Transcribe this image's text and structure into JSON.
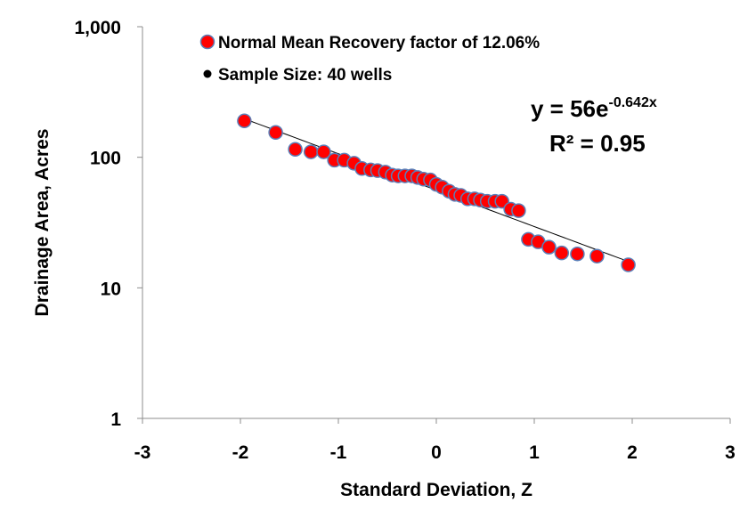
{
  "chart_data": {
    "type": "scatter",
    "xlabel": "Standard Deviation, Z",
    "ylabel": "Drainage  Area, Acres",
    "xlim": [
      -3,
      3
    ],
    "ylim": [
      1,
      1000
    ],
    "y_scale": "log",
    "grid": false,
    "x_ticks": [
      "-3",
      "-2",
      "-1",
      "0",
      "1",
      "2",
      "3"
    ],
    "y_ticks": [
      "1",
      "10",
      "100",
      "1,000"
    ],
    "legend_position": "top-left",
    "legend": [
      "Normal Mean Recovery factor of  12.06%",
      "Sample Size: 40 wells"
    ],
    "series": [
      {
        "name": "Normal Mean Recovery factor of  12.06%",
        "color": "#ff0000",
        "edge_color": "#5b7fb8",
        "points": [
          [
            -1.96,
            190
          ],
          [
            -1.64,
            155
          ],
          [
            -1.44,
            115
          ],
          [
            -1.28,
            110
          ],
          [
            -1.15,
            110
          ],
          [
            -1.04,
            95
          ],
          [
            -0.94,
            95
          ],
          [
            -0.84,
            90
          ],
          [
            -0.76,
            82
          ],
          [
            -0.67,
            80
          ],
          [
            -0.6,
            79
          ],
          [
            -0.52,
            77
          ],
          [
            -0.45,
            73
          ],
          [
            -0.39,
            72
          ],
          [
            -0.32,
            72
          ],
          [
            -0.25,
            72
          ],
          [
            -0.19,
            70
          ],
          [
            -0.13,
            68
          ],
          [
            -0.06,
            67
          ],
          [
            0.0,
            62
          ],
          [
            0.06,
            59
          ],
          [
            0.13,
            55
          ],
          [
            0.19,
            52
          ],
          [
            0.25,
            51
          ],
          [
            0.32,
            48
          ],
          [
            0.39,
            48
          ],
          [
            0.45,
            47
          ],
          [
            0.52,
            46
          ],
          [
            0.6,
            46
          ],
          [
            0.67,
            46
          ],
          [
            0.76,
            40
          ],
          [
            0.84,
            39
          ],
          [
            0.94,
            23.5
          ],
          [
            1.04,
            22.5
          ],
          [
            1.15,
            20.5
          ],
          [
            1.28,
            18.5
          ],
          [
            1.44,
            18.2
          ],
          [
            1.64,
            17.5
          ],
          [
            1.96,
            15
          ]
        ]
      }
    ],
    "trendline": {
      "a": 56,
      "b": -0.642,
      "x_range": [
        -1.96,
        1.96
      ],
      "color": "#000000",
      "equation_prefix": "y = 56e",
      "equation_exponent": "-0.642x",
      "r2": "R² = 0.95"
    }
  }
}
